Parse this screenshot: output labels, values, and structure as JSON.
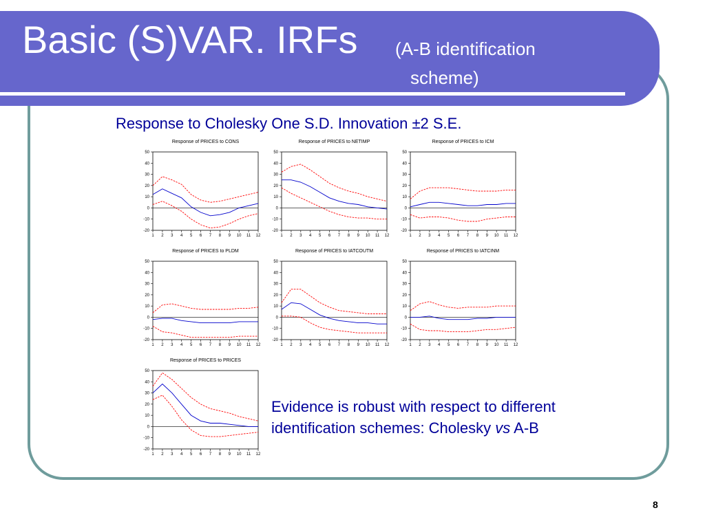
{
  "slide": {
    "title": "Basic (S)VAR. IRFs",
    "title_sub_line1": "(A-B identification",
    "title_sub_line2": "scheme)",
    "heading": "Response to Cholesky One S.D. Innovation ±2 S.E.",
    "evidence_text_1": "Evidence is robust with respect to different identification schemes: Cholesky ",
    "evidence_em": "vs",
    "evidence_text_2": " A-B",
    "page_number": "8"
  },
  "colors": {
    "banner": "#6666cc",
    "frame_border": "#6f9c9c",
    "heading_text": "#000099",
    "response_line": "#0000cc",
    "band_line": "#ff0000"
  },
  "chart_data": [
    {
      "type": "line",
      "title": "Response of PRICES to CONS",
      "x": [
        1,
        2,
        3,
        4,
        5,
        6,
        7,
        8,
        9,
        10,
        11,
        12
      ],
      "ylim": [
        -20,
        50
      ],
      "yticks": [
        50,
        40,
        30,
        20,
        10,
        0,
        -10,
        -20
      ],
      "series": [
        {
          "role": "response",
          "values": [
            12,
            17,
            13,
            9,
            1,
            -4,
            -7,
            -6,
            -4,
            0,
            2,
            4
          ]
        },
        {
          "role": "upper",
          "values": [
            20,
            28,
            25,
            21,
            12,
            7,
            5,
            6,
            8,
            10,
            12,
            14
          ]
        },
        {
          "role": "lower",
          "values": [
            3,
            6,
            2,
            -3,
            -10,
            -15,
            -18,
            -17,
            -14,
            -10,
            -7,
            -5
          ]
        }
      ]
    },
    {
      "type": "line",
      "title": "Response of PRICES to NETIMP",
      "x": [
        1,
        2,
        3,
        4,
        5,
        6,
        7,
        8,
        9,
        10,
        11,
        12
      ],
      "ylim": [
        -20,
        50
      ],
      "yticks": [
        50,
        40,
        30,
        20,
        10,
        0,
        -10,
        -20
      ],
      "series": [
        {
          "role": "response",
          "values": [
            25,
            25,
            23,
            19,
            14,
            9,
            6,
            4,
            3,
            1,
            0,
            -1
          ]
        },
        {
          "role": "upper",
          "values": [
            32,
            37,
            39,
            34,
            28,
            22,
            18,
            15,
            13,
            10,
            8,
            6
          ]
        },
        {
          "role": "lower",
          "values": [
            18,
            13,
            9,
            5,
            1,
            -3,
            -6,
            -8,
            -9,
            -9,
            -10,
            -10
          ]
        }
      ]
    },
    {
      "type": "line",
      "title": "Response of PRICES to ICM",
      "x": [
        1,
        2,
        3,
        4,
        5,
        6,
        7,
        8,
        9,
        10,
        11,
        12
      ],
      "ylim": [
        -20,
        50
      ],
      "yticks": [
        50,
        40,
        30,
        20,
        10,
        0,
        -10,
        -20
      ],
      "series": [
        {
          "role": "response",
          "values": [
            1,
            3,
            5,
            5,
            4,
            3,
            2,
            2,
            3,
            3,
            4,
            4
          ]
        },
        {
          "role": "upper",
          "values": [
            8,
            15,
            18,
            18,
            18,
            17,
            16,
            15,
            15,
            15,
            16,
            16
          ]
        },
        {
          "role": "lower",
          "values": [
            -6,
            -9,
            -8,
            -8,
            -9,
            -11,
            -12,
            -12,
            -10,
            -9,
            -8,
            -8
          ]
        }
      ]
    },
    {
      "type": "line",
      "title": "Response of PRICES to PLDM",
      "x": [
        1,
        2,
        3,
        4,
        5,
        6,
        7,
        8,
        9,
        10,
        11,
        12
      ],
      "ylim": [
        -20,
        50
      ],
      "yticks": [
        50,
        40,
        30,
        20,
        10,
        0,
        -10,
        -20
      ],
      "series": [
        {
          "role": "response",
          "values": [
            -2,
            -1,
            -1,
            -3,
            -4,
            -5,
            -5,
            -5,
            -5,
            -4,
            -4,
            -4
          ]
        },
        {
          "role": "upper",
          "values": [
            4,
            11,
            12,
            10,
            8,
            7,
            7,
            7,
            7,
            8,
            8,
            9
          ]
        },
        {
          "role": "lower",
          "values": [
            -8,
            -13,
            -14,
            -16,
            -18,
            -18,
            -18,
            -18,
            -18,
            -17,
            -17,
            -17
          ]
        }
      ]
    },
    {
      "type": "line",
      "title": "Response of PRICES to IATCOUTM",
      "x": [
        1,
        2,
        3,
        4,
        5,
        6,
        7,
        8,
        9,
        10,
        11,
        12
      ],
      "ylim": [
        -20,
        50
      ],
      "yticks": [
        50,
        40,
        30,
        20,
        10,
        0,
        -10,
        -20
      ],
      "series": [
        {
          "role": "response",
          "values": [
            7,
            13,
            12,
            7,
            2,
            -1,
            -3,
            -4,
            -5,
            -5,
            -6,
            -6
          ]
        },
        {
          "role": "upper",
          "values": [
            13,
            25,
            25,
            19,
            13,
            9,
            6,
            5,
            4,
            3,
            3,
            3
          ]
        },
        {
          "role": "lower",
          "values": [
            1,
            1,
            0,
            -5,
            -9,
            -11,
            -12,
            -13,
            -14,
            -14,
            -14,
            -14
          ]
        }
      ]
    },
    {
      "type": "line",
      "title": "Response of PRICES to IATCINM",
      "x": [
        1,
        2,
        3,
        4,
        5,
        6,
        7,
        8,
        9,
        10,
        11,
        12
      ],
      "ylim": [
        -20,
        50
      ],
      "yticks": [
        50,
        40,
        30,
        20,
        10,
        0,
        -10,
        -20
      ],
      "series": [
        {
          "role": "response",
          "values": [
            0,
            0,
            1,
            -1,
            -2,
            -2,
            -2,
            -1,
            -1,
            0,
            0,
            0
          ]
        },
        {
          "role": "upper",
          "values": [
            6,
            12,
            14,
            11,
            9,
            8,
            9,
            9,
            9,
            10,
            10,
            10
          ]
        },
        {
          "role": "lower",
          "values": [
            -6,
            -11,
            -12,
            -12,
            -13,
            -13,
            -13,
            -12,
            -11,
            -11,
            -10,
            -9
          ]
        }
      ]
    },
    {
      "type": "line",
      "title": "Response of PRICES to PRICES",
      "x": [
        1,
        2,
        3,
        4,
        5,
        6,
        7,
        8,
        9,
        10,
        11,
        12
      ],
      "ylim": [
        -20,
        50
      ],
      "yticks": [
        50,
        40,
        30,
        20,
        10,
        0,
        -10,
        -20
      ],
      "series": [
        {
          "role": "response",
          "values": [
            30,
            38,
            30,
            20,
            10,
            5,
            3,
            3,
            2,
            1,
            0,
            0
          ]
        },
        {
          "role": "upper",
          "values": [
            36,
            48,
            42,
            34,
            26,
            20,
            16,
            14,
            12,
            9,
            7,
            5
          ]
        },
        {
          "role": "lower",
          "values": [
            24,
            28,
            18,
            6,
            -3,
            -8,
            -9,
            -9,
            -8,
            -7,
            -6,
            -5
          ]
        }
      ]
    }
  ]
}
